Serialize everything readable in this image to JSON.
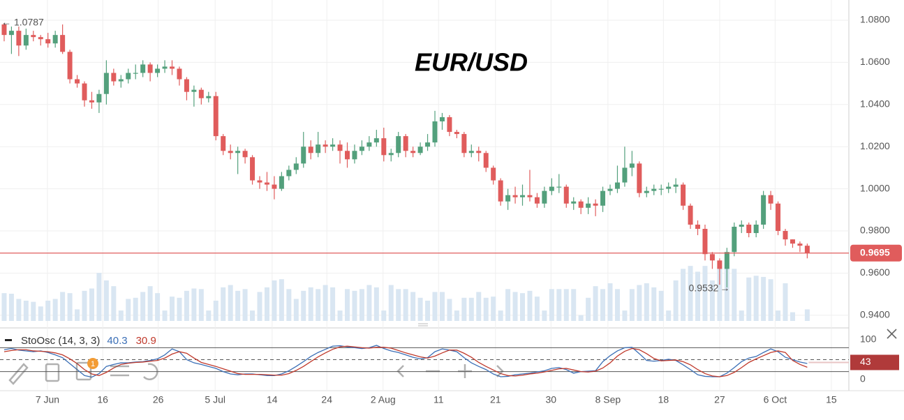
{
  "chart_data": [
    {
      "type": "candlestick",
      "title": "EUR/USD",
      "open": [
        1.078,
        1.073,
        1.075,
        1.068,
        1.073,
        1.072,
        1.071,
        1.069,
        1.073,
        1.065,
        1.052,
        1.05,
        1.042,
        1.041,
        1.045,
        1.055,
        1.051,
        1.052,
        1.055,
        1.055,
        1.059,
        1.055,
        1.057,
        1.058,
        1.057,
        1.052,
        1.046,
        1.047,
        1.043,
        1.044,
        1.025,
        1.018,
        1.017,
        1.018,
        1.015,
        1.004,
        1.003,
        1.002,
        1.0,
        1.006,
        1.009,
        1.012,
        1.02,
        1.017,
        1.021,
        1.02,
        1.021,
        1.018,
        1.014,
        1.018,
        1.02,
        1.022,
        1.024,
        1.016,
        1.017,
        1.025,
        1.018,
        1.017,
        1.02,
        1.022,
        1.032,
        1.034,
        1.027,
        1.026,
        1.017,
        1.018,
        1.017,
        1.01,
        1.004,
        0.994,
        0.997,
        0.996,
        0.997,
        0.996,
        0.993,
        0.999,
        1.001,
        1.001,
        0.993,
        0.994,
        0.991,
        0.993,
        0.992,
        0.999,
        1.0,
        1.003,
        1.01,
        1.012,
        0.998,
        0.999,
        1.0,
        1.0,
        1.001,
        1.002,
        0.992,
        0.983,
        0.981,
        0.969,
        0.966,
        0.962,
        0.97,
        0.982,
        0.983,
        0.979,
        0.983,
        0.997,
        0.993,
        0.98,
        0.976,
        0.974,
        0.973
      ],
      "high": [
        1.0787,
        1.077,
        1.077,
        1.076,
        1.075,
        1.073,
        1.074,
        1.075,
        1.078,
        1.066,
        1.054,
        1.051,
        1.046,
        1.047,
        1.061,
        1.057,
        1.054,
        1.057,
        1.059,
        1.061,
        1.06,
        1.059,
        1.061,
        1.061,
        1.058,
        1.053,
        1.049,
        1.048,
        1.046,
        1.046,
        1.026,
        1.021,
        1.02,
        1.019,
        1.016,
        1.006,
        1.008,
        1.006,
        1.008,
        1.011,
        1.015,
        1.027,
        1.023,
        1.027,
        1.023,
        1.024,
        1.023,
        1.022,
        1.021,
        1.023,
        1.025,
        1.028,
        1.029,
        1.019,
        1.027,
        1.026,
        1.02,
        1.022,
        1.026,
        1.037,
        1.036,
        1.035,
        1.028,
        1.027,
        1.021,
        1.02,
        1.018,
        1.011,
        1.005,
        1.0,
        1.001,
        1.002,
        1.009,
        0.998,
        1.001,
        1.005,
        1.007,
        1.002,
        0.996,
        0.995,
        0.996,
        0.995,
        1.001,
        1.002,
        1.011,
        1.02,
        1.018,
        1.013,
        1.001,
        1.002,
        1.002,
        1.003,
        1.005,
        1.003,
        0.993,
        0.985,
        0.983,
        0.97,
        0.967,
        0.972,
        0.984,
        0.985,
        0.984,
        0.985,
        0.999,
        0.999,
        0.994,
        0.981,
        0.976,
        0.975,
        0.974
      ],
      "low": [
        1.07,
        1.064,
        1.063,
        1.066,
        1.07,
        1.068,
        1.067,
        1.067,
        1.064,
        1.05,
        1.048,
        1.039,
        1.038,
        1.036,
        1.04,
        1.049,
        1.048,
        1.05,
        1.052,
        1.053,
        1.051,
        1.053,
        1.055,
        1.054,
        1.049,
        1.042,
        1.039,
        1.04,
        1.041,
        1.023,
        1.016,
        1.014,
        1.007,
        1.012,
        1.002,
        1.0,
        0.999,
        0.995,
        0.999,
        1.004,
        1.007,
        1.01,
        1.014,
        1.015,
        1.017,
        1.018,
        1.012,
        1.01,
        1.012,
        1.016,
        1.018,
        1.02,
        1.013,
        1.013,
        1.015,
        1.015,
        1.015,
        1.016,
        1.018,
        1.02,
        1.028,
        1.025,
        1.024,
        1.015,
        1.015,
        1.013,
        1.008,
        1.002,
        0.992,
        0.99,
        0.993,
        0.992,
        0.994,
        0.991,
        0.991,
        0.997,
        0.998,
        0.991,
        0.99,
        0.988,
        0.988,
        0.987,
        0.989,
        0.997,
        0.998,
        1.001,
        1.006,
        0.996,
        0.996,
        0.997,
        0.997,
        0.998,
        0.998,
        0.99,
        0.981,
        0.978,
        0.966,
        0.962,
        0.9545,
        0.9532,
        0.968,
        0.979,
        0.977,
        0.977,
        0.981,
        0.99,
        0.978,
        0.973,
        0.972,
        0.97,
        0.967
      ],
      "close": [
        1.073,
        1.075,
        1.068,
        1.073,
        1.072,
        1.071,
        1.069,
        1.073,
        1.065,
        1.052,
        1.05,
        1.042,
        1.041,
        1.045,
        1.055,
        1.051,
        1.052,
        1.055,
        1.055,
        1.059,
        1.055,
        1.057,
        1.058,
        1.057,
        1.052,
        1.046,
        1.047,
        1.043,
        1.044,
        1.025,
        1.018,
        1.017,
        1.018,
        1.015,
        1.004,
        1.003,
        1.002,
        1.0,
        1.006,
        1.009,
        1.012,
        1.02,
        1.017,
        1.021,
        1.02,
        1.021,
        1.018,
        1.014,
        1.018,
        1.02,
        1.022,
        1.024,
        1.016,
        1.017,
        1.025,
        1.018,
        1.017,
        1.02,
        1.022,
        1.032,
        1.034,
        1.027,
        1.026,
        1.017,
        1.018,
        1.017,
        1.01,
        1.004,
        0.994,
        0.997,
        0.996,
        0.997,
        0.996,
        0.993,
        0.999,
        1.001,
        1.001,
        0.993,
        0.994,
        0.991,
        0.993,
        0.992,
        0.999,
        1.0,
        1.003,
        1.01,
        1.012,
        0.998,
        0.999,
        1.0,
        1.0,
        1.001,
        1.002,
        0.992,
        0.983,
        0.981,
        0.969,
        0.966,
        0.962,
        0.97,
        0.982,
        0.983,
        0.979,
        0.983,
        0.997,
        0.993,
        0.98,
        0.976,
        0.974,
        0.973,
        0.9695
      ],
      "volume": [
        48,
        47,
        38,
        35,
        33,
        25,
        35,
        38,
        50,
        48,
        20,
        52,
        56,
        83,
        70,
        60,
        18,
        38,
        40,
        50,
        60,
        48,
        18,
        42,
        40,
        52,
        56,
        55,
        18,
        35,
        58,
        62,
        52,
        55,
        18,
        50,
        58,
        70,
        72,
        55,
        38,
        52,
        58,
        55,
        62,
        58,
        18,
        55,
        52,
        55,
        62,
        58,
        18,
        62,
        55,
        55,
        50,
        40,
        35,
        50,
        50,
        38,
        18,
        40,
        40,
        50,
        40,
        42,
        18,
        55,
        50,
        48,
        52,
        42,
        18,
        55,
        55,
        55,
        55,
        10,
        40,
        60,
        55,
        65,
        55,
        18,
        55,
        62,
        65,
        58,
        52,
        18,
        70,
        90,
        95,
        85,
        95,
        70,
        95,
        100,
        90,
        18,
        75,
        78,
        76,
        72,
        18,
        65,
        15,
        0,
        20
      ],
      "up_color": "#53a07c",
      "down_color": "#e05c5c",
      "volume_color": "#d9e6f2",
      "last_price_color": "#e05c5c",
      "xlim": [
        -0.57,
        115.7
      ],
      "xticks": [
        {
          "value": 5.93,
          "label": "7 Jun"
        },
        {
          "value": 13.5,
          "label": "16"
        },
        {
          "value": 21.1,
          "label": "26"
        },
        {
          "value": 28.9,
          "label": "5 Jul"
        },
        {
          "value": 36.7,
          "label": "14"
        },
        {
          "value": 44.2,
          "label": "24"
        },
        {
          "value": 51.9,
          "label": "2 Aug"
        },
        {
          "value": 59.5,
          "label": "11"
        },
        {
          "value": 67.3,
          "label": "21"
        },
        {
          "value": 74.9,
          "label": "30"
        },
        {
          "value": 82.7,
          "label": "8 Sep"
        },
        {
          "value": 90.3,
          "label": "18"
        },
        {
          "value": 98,
          "label": "27"
        },
        {
          "value": 105.6,
          "label": "6 Oct"
        },
        {
          "value": 113.3,
          "label": "15"
        }
      ],
      "ylim": [
        0.9373,
        1.0896
      ],
      "yticks": [
        {
          "value": 0.94,
          "label": "0.9400"
        },
        {
          "value": 0.96,
          "label": "0.9600"
        },
        {
          "value": 0.98,
          "label": "0.9800"
        },
        {
          "value": 1.0,
          "label": "1.0000"
        },
        {
          "value": 1.02,
          "label": "1.0200"
        },
        {
          "value": 1.04,
          "label": "1.0400"
        },
        {
          "value": 1.06,
          "label": "1.0600"
        },
        {
          "value": 1.08,
          "label": "1.0800"
        }
      ],
      "grid": true
    },
    {
      "type": "line",
      "title": "StoOsc (14, 3, 3)",
      "series": [
        {
          "color": "#3b6fb6",
          "values": [
            75,
            78,
            74,
            72,
            70,
            72,
            68,
            62,
            55,
            40,
            25,
            10,
            6,
            15,
            33,
            38,
            42,
            42,
            44,
            45,
            48,
            52,
            62,
            77,
            70,
            50,
            42,
            38,
            33,
            28,
            20,
            14,
            12,
            14,
            14,
            12,
            10,
            10,
            14,
            22,
            33,
            45,
            58,
            68,
            76,
            84,
            85,
            82,
            80,
            78,
            80,
            86,
            78,
            72,
            68,
            62,
            56,
            52,
            55,
            70,
            77,
            74,
            70,
            55,
            42,
            33,
            25,
            14,
            7,
            8,
            12,
            14,
            16,
            19,
            22,
            28,
            30,
            25,
            16,
            20,
            21,
            22,
            45,
            60,
            72,
            80,
            81,
            65,
            48,
            46,
            48,
            51,
            48,
            37,
            25,
            12,
            8,
            7,
            7,
            16,
            30,
            45,
            54,
            58,
            68,
            77,
            70,
            56,
            50,
            44,
            40.3
          ]
        },
        {
          "color": "#c0392b",
          "values": [
            70,
            73,
            75,
            75,
            72,
            71,
            70,
            67,
            62,
            52,
            40,
            25,
            14,
            10,
            18,
            29,
            38,
            41,
            43,
            44,
            46,
            48,
            54,
            64,
            70,
            66,
            54,
            43,
            38,
            33,
            27,
            21,
            15,
            13,
            13,
            13,
            12,
            11,
            11,
            15,
            23,
            33,
            45,
            57,
            67,
            76,
            82,
            84,
            82,
            80,
            79,
            81,
            81,
            79,
            73,
            67,
            62,
            57,
            54,
            59,
            67,
            74,
            74,
            66,
            56,
            43,
            33,
            24,
            15,
            10,
            9,
            11,
            14,
            16,
            19,
            23,
            27,
            28,
            24,
            20,
            19,
            21,
            29,
            42,
            59,
            71,
            78,
            75,
            65,
            53,
            47,
            48,
            49,
            45,
            37,
            25,
            15,
            9,
            7,
            10,
            18,
            30,
            43,
            52,
            60,
            68,
            72,
            68,
            48,
            38,
            30.9
          ]
        }
      ],
      "ylim": [
        0,
        100
      ],
      "yticks": [
        0,
        100
      ],
      "levels": [
        20,
        50,
        80
      ],
      "tag": 43
    }
  ],
  "toolbar": {
    "badge": "1"
  }
}
